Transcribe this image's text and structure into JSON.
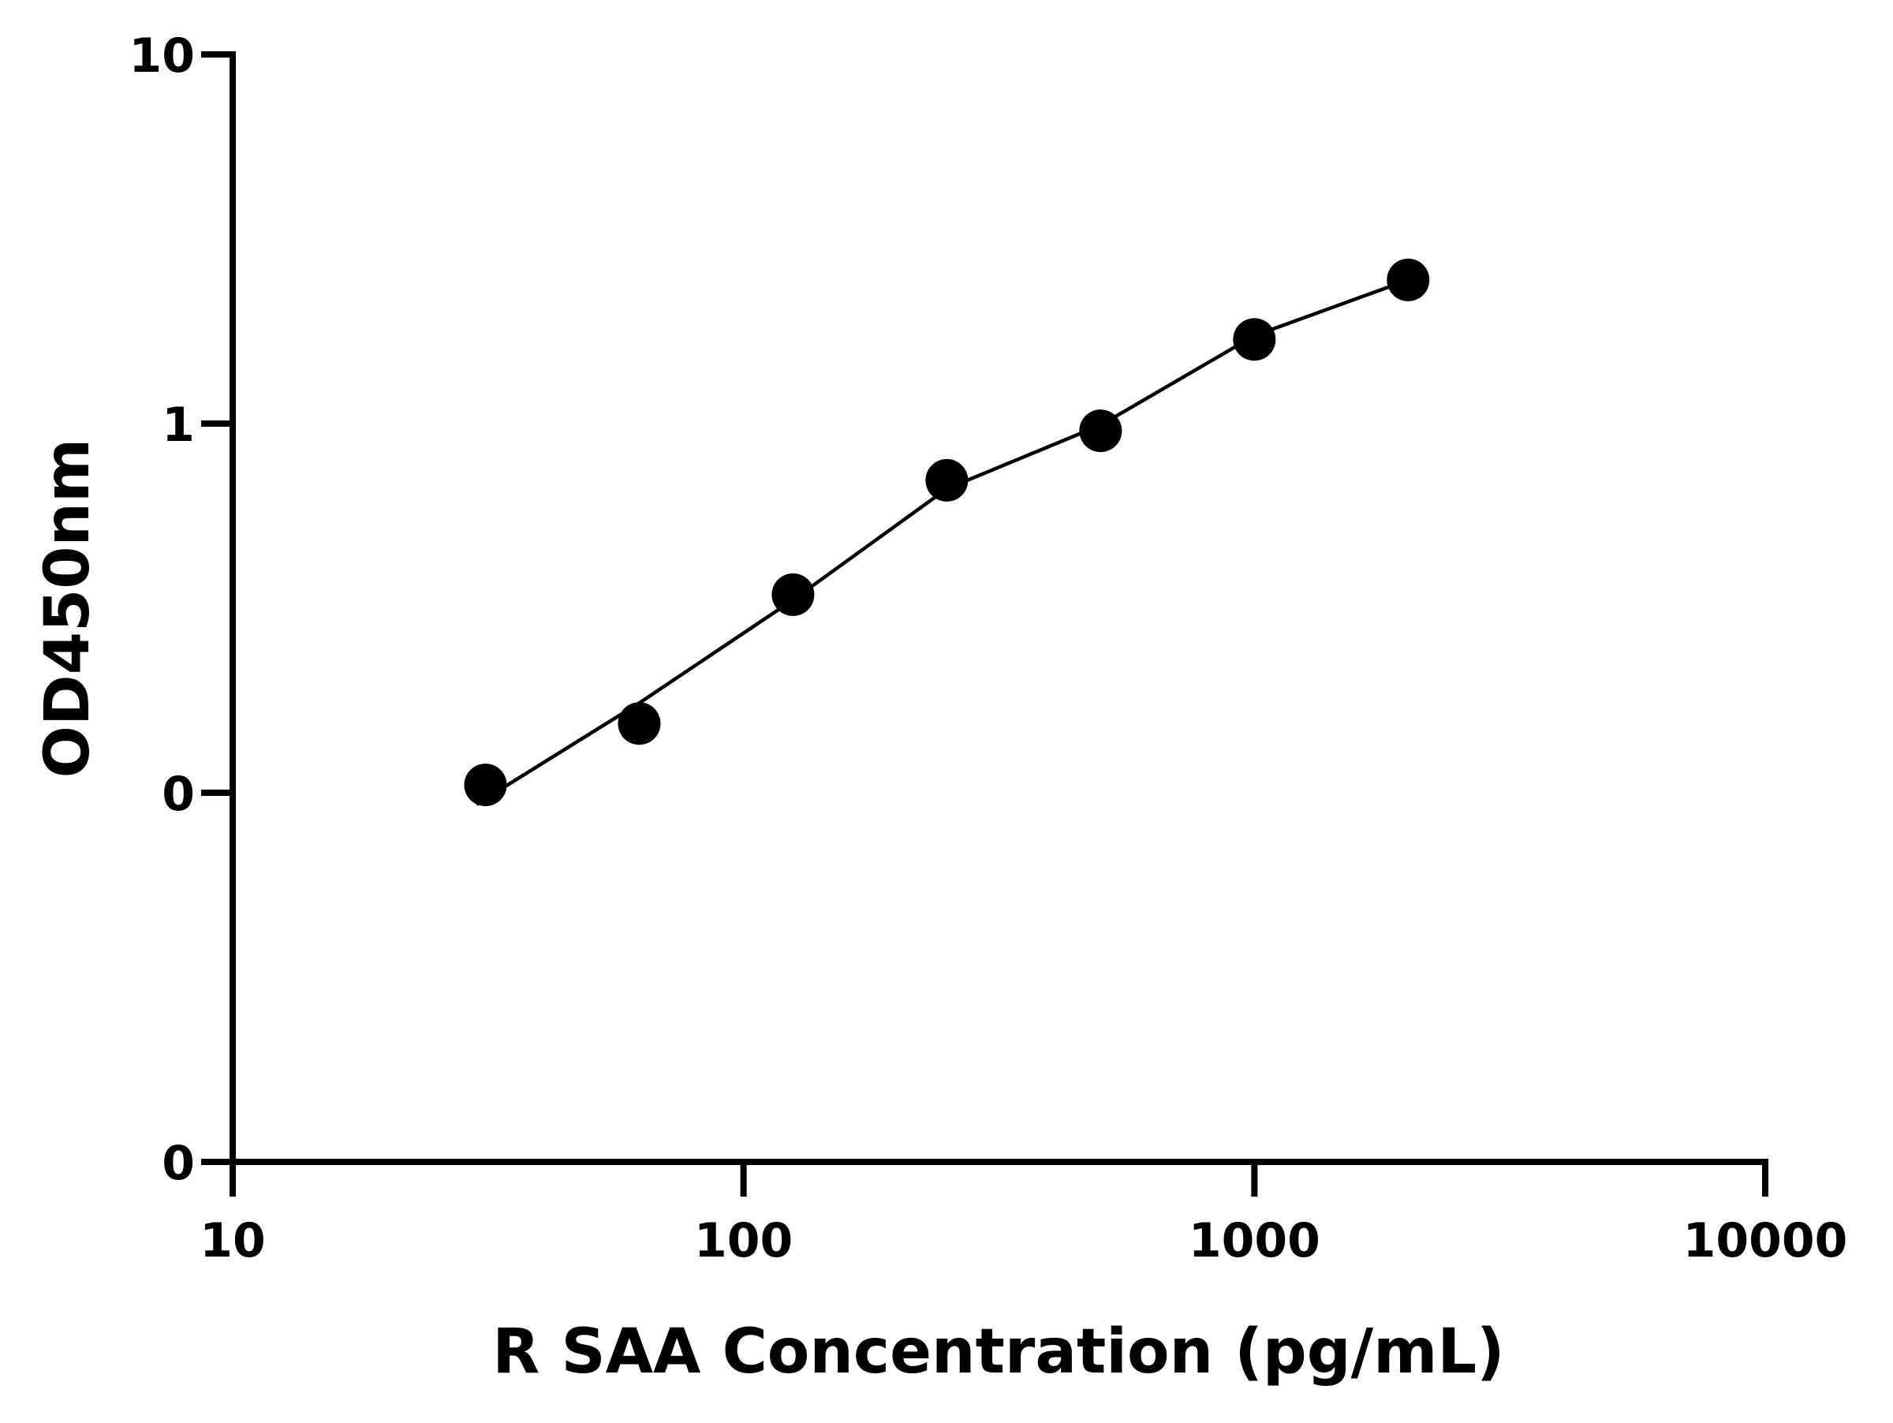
{
  "chart_data": {
    "type": "scatter",
    "x_label": "R SAA Concentration (pg/mL)",
    "y_label": "OD450nm",
    "x_log": true,
    "y_log": true,
    "xlim": [
      10,
      10000
    ],
    "ylim": [
      0.01,
      10
    ],
    "xticks": [
      10,
      100,
      1000,
      10000
    ],
    "yticks": [
      {
        "value": 0.01,
        "label": "0"
      },
      {
        "value": 0.1,
        "label": "0"
      },
      1,
      10
    ],
    "color": "#000000",
    "x": [
      31.25,
      62.5,
      125,
      250,
      500,
      1000,
      2000
    ],
    "values": [
      0.105,
      0.154,
      0.344,
      0.702,
      0.956,
      1.69,
      2.45
    ],
    "curve": {
      "x": [
        30,
        62.5,
        125,
        250,
        500,
        1000,
        2000
      ],
      "values": [
        0.093,
        0.175,
        0.333,
        0.666,
        0.99,
        1.73,
        2.45
      ]
    }
  }
}
